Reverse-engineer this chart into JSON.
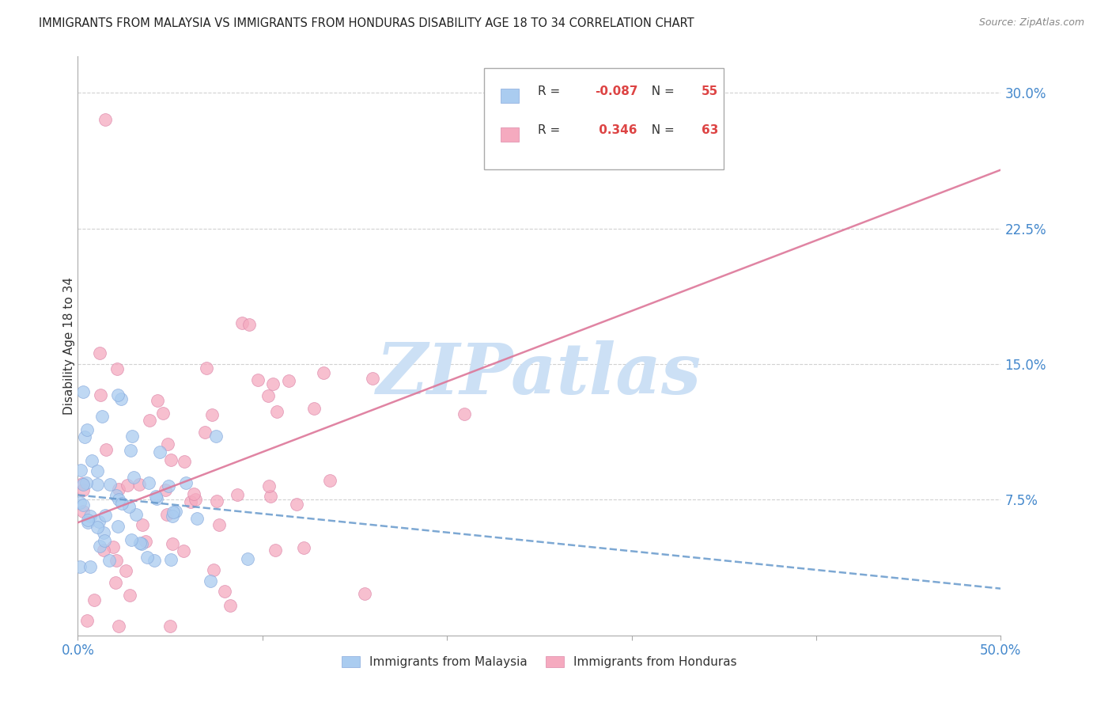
{
  "title": "IMMIGRANTS FROM MALAYSIA VS IMMIGRANTS FROM HONDURAS DISABILITY AGE 18 TO 34 CORRELATION CHART",
  "source": "Source: ZipAtlas.com",
  "ylabel": "Disability Age 18 to 34",
  "xlim": [
    0.0,
    0.5
  ],
  "ylim": [
    0.0,
    0.32
  ],
  "ytick_positions": [
    0.075,
    0.15,
    0.225,
    0.3
  ],
  "ytick_labels": [
    "7.5%",
    "15.0%",
    "22.5%",
    "30.0%"
  ],
  "malaysia_color": "#aaccf0",
  "honduras_color": "#f5aabf",
  "malaysia_edge": "#88aadd",
  "honduras_edge": "#dd88aa",
  "trend_malaysia_color": "#6699cc",
  "trend_honduras_color": "#dd7799",
  "R_malaysia": -0.087,
  "N_malaysia": 55,
  "R_honduras": 0.346,
  "N_honduras": 63,
  "watermark_text": "ZIPatlas",
  "watermark_color": "#cce0f5",
  "background_color": "#ffffff",
  "grid_color": "#cccccc",
  "axis_color": "#aaaaaa",
  "tick_label_color": "#4488cc",
  "title_color": "#222222",
  "source_color": "#888888",
  "ylabel_color": "#333333",
  "legend_label_malaysia": "Immigrants from Malaysia",
  "legend_label_honduras": "Immigrants from Honduras"
}
